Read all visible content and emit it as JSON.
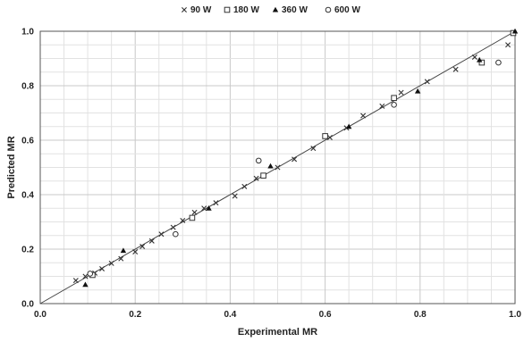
{
  "chart_data": {
    "type": "scatter",
    "title": "",
    "xlabel": "Experimental MR",
    "ylabel": "Predicted MR",
    "xlim": [
      0,
      1
    ],
    "ylim": [
      0,
      1
    ],
    "x_ticks": [
      "0.0",
      "0.2",
      "0.4",
      "0.6",
      "0.8",
      "1.0"
    ],
    "y_ticks": [
      "0.0",
      "0.2",
      "0.4",
      "0.6",
      "0.8",
      "1.0"
    ],
    "grid": true,
    "legend_position": "top-center",
    "reference_line": {
      "x": [
        0,
        1
      ],
      "y": [
        0,
        1
      ]
    },
    "series": [
      {
        "name": "90 W",
        "marker": "x",
        "points": [
          {
            "x": 0.075,
            "y": 0.085
          },
          {
            "x": 0.095,
            "y": 0.1
          },
          {
            "x": 0.115,
            "y": 0.112
          },
          {
            "x": 0.13,
            "y": 0.128
          },
          {
            "x": 0.15,
            "y": 0.148
          },
          {
            "x": 0.17,
            "y": 0.165
          },
          {
            "x": 0.2,
            "y": 0.19
          },
          {
            "x": 0.215,
            "y": 0.21
          },
          {
            "x": 0.235,
            "y": 0.23
          },
          {
            "x": 0.255,
            "y": 0.255
          },
          {
            "x": 0.28,
            "y": 0.28
          },
          {
            "x": 0.3,
            "y": 0.305
          },
          {
            "x": 0.325,
            "y": 0.335
          },
          {
            "x": 0.345,
            "y": 0.35
          },
          {
            "x": 0.37,
            "y": 0.37
          },
          {
            "x": 0.41,
            "y": 0.395
          },
          {
            "x": 0.43,
            "y": 0.43
          },
          {
            "x": 0.455,
            "y": 0.46
          },
          {
            "x": 0.5,
            "y": 0.5
          },
          {
            "x": 0.535,
            "y": 0.53
          },
          {
            "x": 0.575,
            "y": 0.57
          },
          {
            "x": 0.61,
            "y": 0.61
          },
          {
            "x": 0.645,
            "y": 0.645
          },
          {
            "x": 0.68,
            "y": 0.69
          },
          {
            "x": 0.72,
            "y": 0.725
          },
          {
            "x": 0.76,
            "y": 0.775
          },
          {
            "x": 0.815,
            "y": 0.815
          },
          {
            "x": 0.875,
            "y": 0.86
          },
          {
            "x": 0.915,
            "y": 0.905
          },
          {
            "x": 0.985,
            "y": 0.95
          }
        ]
      },
      {
        "name": "180 W",
        "marker": "square",
        "points": [
          {
            "x": 0.11,
            "y": 0.105
          },
          {
            "x": 0.32,
            "y": 0.315
          },
          {
            "x": 0.47,
            "y": 0.47
          },
          {
            "x": 0.6,
            "y": 0.615
          },
          {
            "x": 0.745,
            "y": 0.755
          },
          {
            "x": 0.93,
            "y": 0.885
          },
          {
            "x": 1.0,
            "y": 1.0
          }
        ]
      },
      {
        "name": "360 W",
        "marker": "triangle",
        "points": [
          {
            "x": 0.095,
            "y": 0.07
          },
          {
            "x": 0.175,
            "y": 0.195
          },
          {
            "x": 0.355,
            "y": 0.35
          },
          {
            "x": 0.485,
            "y": 0.505
          },
          {
            "x": 0.65,
            "y": 0.65
          },
          {
            "x": 0.795,
            "y": 0.78
          },
          {
            "x": 0.925,
            "y": 0.895
          },
          {
            "x": 1.0,
            "y": 1.0
          }
        ]
      },
      {
        "name": "600 W",
        "marker": "circle",
        "points": [
          {
            "x": 0.105,
            "y": 0.11
          },
          {
            "x": 0.285,
            "y": 0.255
          },
          {
            "x": 0.46,
            "y": 0.525
          },
          {
            "x": 0.745,
            "y": 0.73
          },
          {
            "x": 0.965,
            "y": 0.885
          }
        ]
      }
    ]
  }
}
